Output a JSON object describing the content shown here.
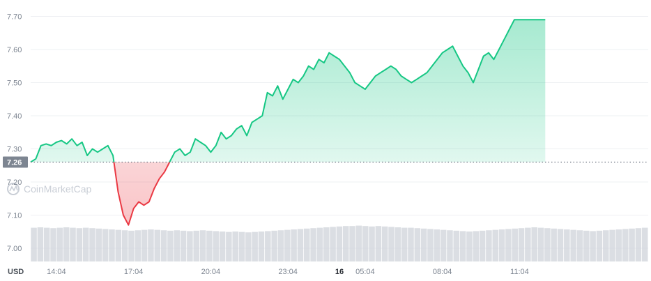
{
  "chart_data": {
    "type": "area",
    "unit_label": "USD",
    "watermark": "CoinMarketCap",
    "reference_value": 7.26,
    "reference_label": "7.26",
    "ylim": [
      6.96,
      7.72
    ],
    "y_ticks": [
      {
        "value": 7.0,
        "label": "7.00"
      },
      {
        "value": 7.1,
        "label": "7.10"
      },
      {
        "value": 7.2,
        "label": "7.20"
      },
      {
        "value": 7.3,
        "label": "7.30"
      },
      {
        "value": 7.4,
        "label": "7.40"
      },
      {
        "value": 7.5,
        "label": "7.50"
      },
      {
        "value": 7.6,
        "label": "7.60"
      },
      {
        "value": 7.7,
        "label": "7.70"
      }
    ],
    "x_range": [
      0,
      24
    ],
    "x_ticks": [
      {
        "x": 1.0,
        "label": "14:04",
        "bold": false
      },
      {
        "x": 4.0,
        "label": "17:04",
        "bold": false
      },
      {
        "x": 7.0,
        "label": "20:04",
        "bold": false
      },
      {
        "x": 10.0,
        "label": "23:04",
        "bold": false
      },
      {
        "x": 12.0,
        "label": "16",
        "bold": true
      },
      {
        "x": 13.0,
        "label": "05:04",
        "bold": false
      },
      {
        "x": 16.0,
        "label": "08:04",
        "bold": false
      },
      {
        "x": 19.0,
        "label": "11:04",
        "bold": false
      }
    ],
    "up_color": "#16c784",
    "down_color": "#ea3943",
    "volume_color": "#cfd3da",
    "price_series": {
      "x": [
        0.0,
        0.2,
        0.4,
        0.6,
        0.8,
        1.0,
        1.2,
        1.4,
        1.6,
        1.8,
        2.0,
        2.2,
        2.4,
        2.6,
        2.8,
        3.0,
        3.2,
        3.4,
        3.6,
        3.8,
        4.0,
        4.2,
        4.4,
        4.6,
        4.8,
        5.0,
        5.2,
        5.4,
        5.6,
        5.8,
        6.0,
        6.2,
        6.4,
        6.6,
        6.8,
        7.0,
        7.2,
        7.4,
        7.6,
        7.8,
        8.0,
        8.2,
        8.4,
        8.6,
        8.8,
        9.0,
        9.2,
        9.4,
        9.6,
        9.8,
        10.0,
        10.2,
        10.4,
        10.6,
        10.8,
        11.0,
        11.2,
        11.4,
        11.6,
        11.8,
        12.0,
        12.2,
        12.4,
        12.6,
        12.8,
        13.0,
        13.2,
        13.4,
        13.6,
        13.8,
        14.0,
        14.2,
        14.4,
        14.6,
        14.8,
        15.0,
        15.2,
        15.4,
        15.6,
        15.8,
        16.0,
        16.2,
        16.4,
        16.6,
        16.8,
        17.0,
        17.2,
        17.4,
        17.6,
        17.8,
        18.0,
        18.2,
        18.4,
        18.6,
        18.8,
        19.0,
        19.2,
        19.4,
        19.6,
        19.8,
        20.0
      ],
      "y": [
        7.26,
        7.27,
        7.31,
        7.315,
        7.31,
        7.32,
        7.325,
        7.315,
        7.33,
        7.31,
        7.32,
        7.28,
        7.3,
        7.29,
        7.3,
        7.31,
        7.28,
        7.17,
        7.1,
        7.07,
        7.12,
        7.14,
        7.13,
        7.14,
        7.18,
        7.21,
        7.23,
        7.26,
        7.29,
        7.3,
        7.28,
        7.29,
        7.33,
        7.32,
        7.31,
        7.29,
        7.31,
        7.35,
        7.33,
        7.34,
        7.36,
        7.37,
        7.34,
        7.38,
        7.39,
        7.4,
        7.47,
        7.46,
        7.49,
        7.45,
        7.48,
        7.51,
        7.5,
        7.52,
        7.55,
        7.54,
        7.57,
        7.56,
        7.59,
        7.58,
        7.57,
        7.55,
        7.53,
        7.5,
        7.49,
        7.48,
        7.5,
        7.52,
        7.53,
        7.54,
        7.55,
        7.54,
        7.52,
        7.51,
        7.5,
        7.51,
        7.52,
        7.53,
        7.55,
        7.57,
        7.59,
        7.6,
        7.61,
        7.58,
        7.55,
        7.53,
        7.5,
        7.54,
        7.58,
        7.59,
        7.57,
        7.6,
        7.63,
        7.66,
        7.69,
        7.69,
        7.69,
        7.69,
        7.69,
        7.69,
        7.69
      ]
    },
    "volume_series": {
      "values": [
        0.8,
        0.81,
        0.8,
        0.79,
        0.8,
        0.81,
        0.8,
        0.79,
        0.8,
        0.79,
        0.78,
        0.77,
        0.76,
        0.75,
        0.74,
        0.73,
        0.74,
        0.75,
        0.76,
        0.75,
        0.74,
        0.73,
        0.74,
        0.73,
        0.72,
        0.73,
        0.74,
        0.73,
        0.72,
        0.71,
        0.7,
        0.71,
        0.7,
        0.69,
        0.7,
        0.71,
        0.72,
        0.73,
        0.74,
        0.75,
        0.76,
        0.77,
        0.78,
        0.79,
        0.8,
        0.81,
        0.82,
        0.83,
        0.84,
        0.84,
        0.85,
        0.84,
        0.83,
        0.84,
        0.83,
        0.82,
        0.81,
        0.8,
        0.8,
        0.79,
        0.78,
        0.77,
        0.76,
        0.75,
        0.74,
        0.73,
        0.72,
        0.71,
        0.72,
        0.73,
        0.74,
        0.75,
        0.76,
        0.77,
        0.78,
        0.79,
        0.8,
        0.81,
        0.8,
        0.79,
        0.78,
        0.77,
        0.76,
        0.75,
        0.74,
        0.73,
        0.72,
        0.73,
        0.74,
        0.75,
        0.76,
        0.77,
        0.78,
        0.79,
        0.8
      ]
    }
  }
}
